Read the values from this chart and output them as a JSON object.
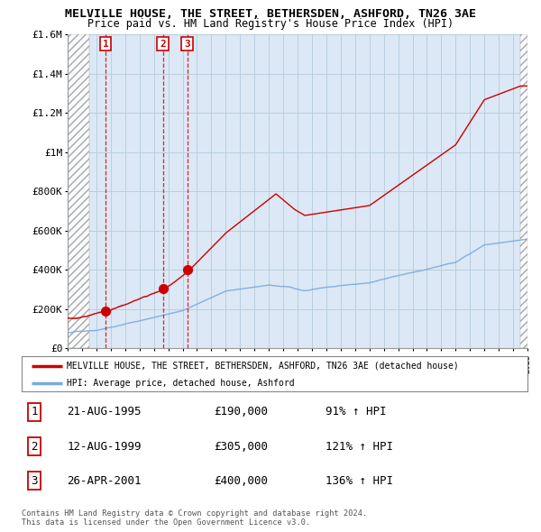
{
  "title": "MELVILLE HOUSE, THE STREET, BETHERSDEN, ASHFORD, TN26 3AE",
  "subtitle": "Price paid vs. HM Land Registry's House Price Index (HPI)",
  "xlim_years": [
    1993,
    2025
  ],
  "ylim": [
    0,
    1600000
  ],
  "yticks": [
    0,
    200000,
    400000,
    600000,
    800000,
    1000000,
    1200000,
    1400000,
    1600000
  ],
  "ytick_labels": [
    "£0",
    "£200K",
    "£400K",
    "£600K",
    "£800K",
    "£1M",
    "£1.2M",
    "£1.4M",
    "£1.6M"
  ],
  "sales": [
    {
      "year": 1995.64,
      "price": 190000,
      "label": "1"
    },
    {
      "year": 1999.62,
      "price": 305000,
      "label": "2"
    },
    {
      "year": 2001.32,
      "price": 400000,
      "label": "3"
    }
  ],
  "sale_dates": [
    "21-AUG-1995",
    "12-AUG-1999",
    "26-APR-2001"
  ],
  "sale_prices": [
    "£190,000",
    "£305,000",
    "£400,000"
  ],
  "sale_hpi": [
    "91% ↑ HPI",
    "121% ↑ HPI",
    "136% ↑ HPI"
  ],
  "red_line_color": "#cc0000",
  "blue_line_color": "#7aaadd",
  "bg_color": "#dce8f5",
  "grid_color": "#b8cfe0",
  "legend_label_red": "MELVILLE HOUSE, THE STREET, BETHERSDEN, ASHFORD, TN26 3AE (detached house)",
  "legend_label_blue": "HPI: Average price, detached house, Ashford",
  "footer": "Contains HM Land Registry data © Crown copyright and database right 2024.\nThis data is licensed under the Open Government Licence v3.0."
}
